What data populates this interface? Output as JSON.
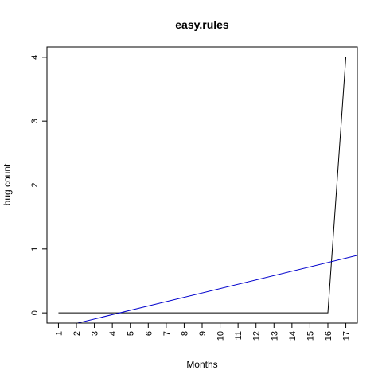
{
  "chart_data": {
    "type": "line",
    "title": "easy.rules",
    "xlabel": "Months",
    "ylabel": "bug count",
    "x": [
      1,
      2,
      3,
      4,
      5,
      6,
      7,
      8,
      9,
      10,
      11,
      12,
      13,
      14,
      15,
      16,
      17
    ],
    "x_tick_labels": [
      "1",
      "2",
      "3",
      "4",
      "5",
      "6",
      "7",
      "8",
      "9",
      "10",
      "11",
      "12",
      "13",
      "14",
      "15",
      "16",
      "17"
    ],
    "y_ticks": [
      0,
      1,
      2,
      3,
      4
    ],
    "y_tick_labels": [
      "0",
      "1",
      "2",
      "3",
      "4"
    ],
    "xlim": [
      0.36,
      17.64
    ],
    "ylim": [
      -0.16,
      4.16
    ],
    "grid": false,
    "series": [
      {
        "values": [
          0,
          0,
          0,
          0,
          0,
          0,
          0,
          0,
          0,
          0,
          0,
          0,
          0,
          0,
          0,
          0,
          4
        ],
        "color": "#000000"
      }
    ],
    "trend_line": {
      "type": "abline",
      "intercept": -0.3,
      "slope": 0.068,
      "color": "#0000cc"
    }
  }
}
